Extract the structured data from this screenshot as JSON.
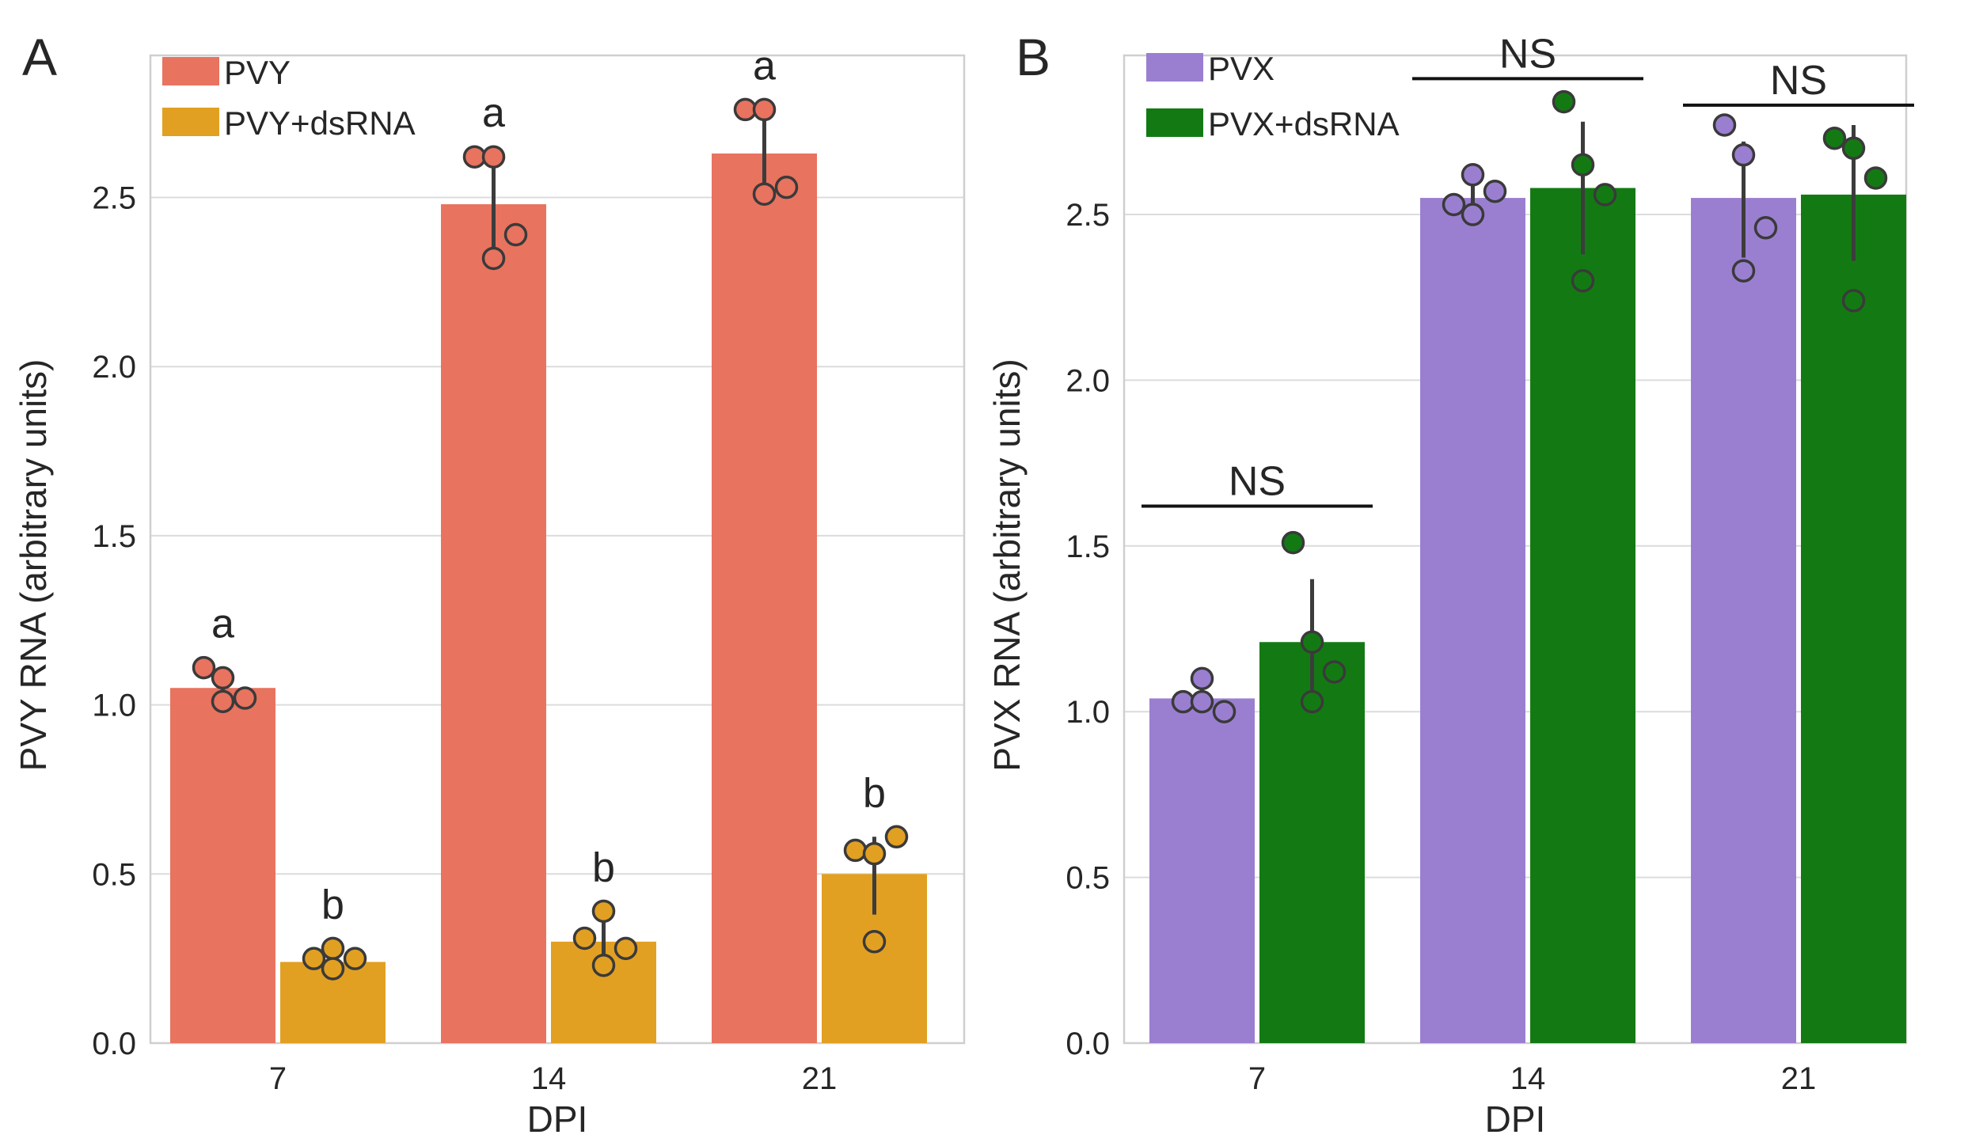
{
  "colors": {
    "PVY": "#e8735f",
    "PVY+dsRNA": "#e2a022",
    "PVX": "#9a7fd1",
    "PVX+dsRNA": "#137a13"
  },
  "chart_data": [
    {
      "type": "bar",
      "panel": "A",
      "title": "",
      "xlabel": "DPI",
      "ylabel": "PVY RNA (arbitrary units)",
      "categories": [
        "7",
        "14",
        "21"
      ],
      "ylim": [
        0,
        2.92
      ],
      "yticks": [
        0.0,
        0.5,
        1.0,
        1.5,
        2.0,
        2.5
      ],
      "ytick_labels": [
        "0.0",
        "0.5",
        "1.0",
        "1.5",
        "2.0",
        "2.5"
      ],
      "grid": "horizontal",
      "legend": "top-left",
      "series": [
        {
          "name": "PVY",
          "color": "#e8735f",
          "values": [
            1.05,
            2.48,
            2.63
          ],
          "error_low": [
            1.0,
            2.32,
            2.5
          ],
          "error_high": [
            1.1,
            2.62,
            2.76
          ],
          "points": [
            [
              1.11,
              1.08,
              1.02,
              1.01
            ],
            [
              2.62,
              2.62,
              2.39,
              2.32
            ],
            [
              2.76,
              2.76,
              2.53,
              2.51
            ]
          ],
          "annotations": [
            "a",
            "a",
            "a"
          ]
        },
        {
          "name": "PVY+dsRNA",
          "color": "#e2a022",
          "values": [
            0.24,
            0.3,
            0.5
          ],
          "error_low": [
            0.22,
            0.23,
            0.38
          ],
          "error_high": [
            0.27,
            0.38,
            0.61
          ],
          "points": [
            [
              0.25,
              0.28,
              0.25,
              0.22
            ],
            [
              0.31,
              0.39,
              0.28,
              0.23
            ],
            [
              0.57,
              0.56,
              0.61,
              0.3
            ]
          ],
          "annotations": [
            "b",
            "b",
            "b"
          ]
        }
      ]
    },
    {
      "type": "bar",
      "panel": "B",
      "title": "",
      "xlabel": "DPI",
      "ylabel": "PVX RNA (arbitrary units)",
      "categories": [
        "7",
        "14",
        "21"
      ],
      "ylim": [
        0,
        2.98
      ],
      "yticks": [
        0.0,
        0.5,
        1.0,
        1.5,
        2.0,
        2.5
      ],
      "ytick_labels": [
        "0.0",
        "0.5",
        "1.0",
        "1.5",
        "2.0",
        "2.5"
      ],
      "grid": "horizontal",
      "legend": "top-left",
      "series": [
        {
          "name": "PVX",
          "color": "#9a7fd1",
          "values": [
            1.04,
            2.55,
            2.55
          ],
          "error_low": [
            1.0,
            2.5,
            2.37
          ],
          "error_high": [
            1.08,
            2.6,
            2.72
          ],
          "points": [
            [
              1.03,
              1.1,
              1.0,
              1.03
            ],
            [
              2.53,
              2.62,
              2.57,
              2.5
            ],
            [
              2.77,
              2.68,
              2.46,
              2.33
            ]
          ],
          "annotations": []
        },
        {
          "name": "PVX+dsRNA",
          "color": "#137a13",
          "values": [
            1.21,
            2.58,
            2.56
          ],
          "error_low": [
            1.04,
            2.38,
            2.36
          ],
          "error_high": [
            1.4,
            2.78,
            2.77
          ],
          "points": [
            [
              1.51,
              1.21,
              1.12,
              1.03
            ],
            [
              2.84,
              2.65,
              2.56,
              2.3
            ],
            [
              2.73,
              2.7,
              2.61,
              2.24
            ]
          ],
          "annotations": []
        }
      ],
      "brackets": [
        {
          "category_index": 0,
          "label": "NS",
          "y": 1.62
        },
        {
          "category_index": 1,
          "label": "NS",
          "y": 2.91
        },
        {
          "category_index": 2,
          "label": "NS",
          "y": 2.83
        }
      ]
    }
  ]
}
